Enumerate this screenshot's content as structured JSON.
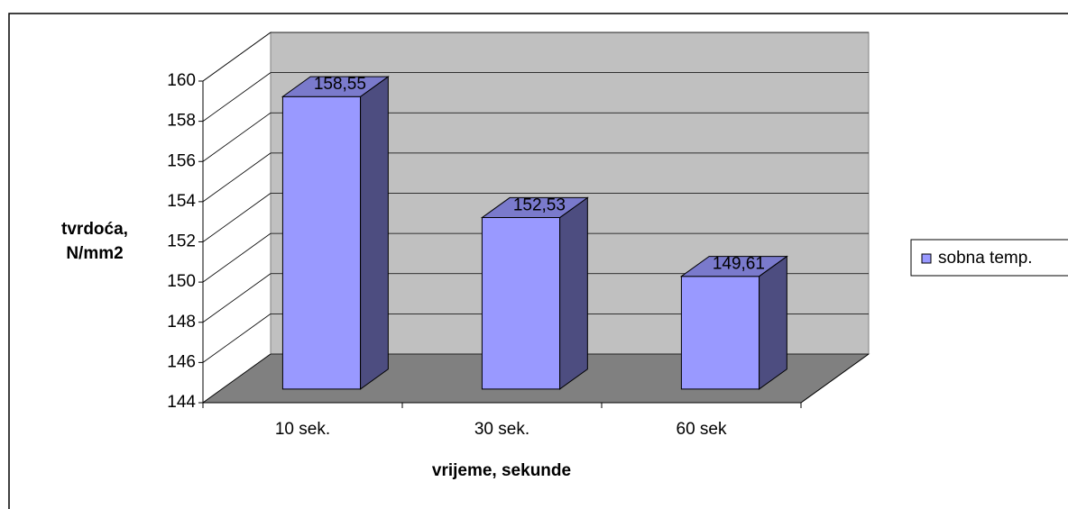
{
  "chart_data": {
    "type": "bar3d",
    "categories": [
      "10 sek.",
      "30 sek.",
      "60 sek"
    ],
    "series": [
      {
        "name": "sobna temp.",
        "color": "#9999ff",
        "values": [
          158.55,
          152.53,
          149.61
        ],
        "value_labels": [
          "158,55",
          "152,53",
          "149,61"
        ]
      }
    ],
    "ylim": [
      144,
      160
    ],
    "yticks": [
      144,
      146,
      148,
      150,
      152,
      154,
      156,
      158,
      160
    ],
    "xlabel": "vrijeme, sekunde",
    "ylabel": "tvrdoća, N/mm2",
    "grid": true,
    "legend": "right"
  }
}
